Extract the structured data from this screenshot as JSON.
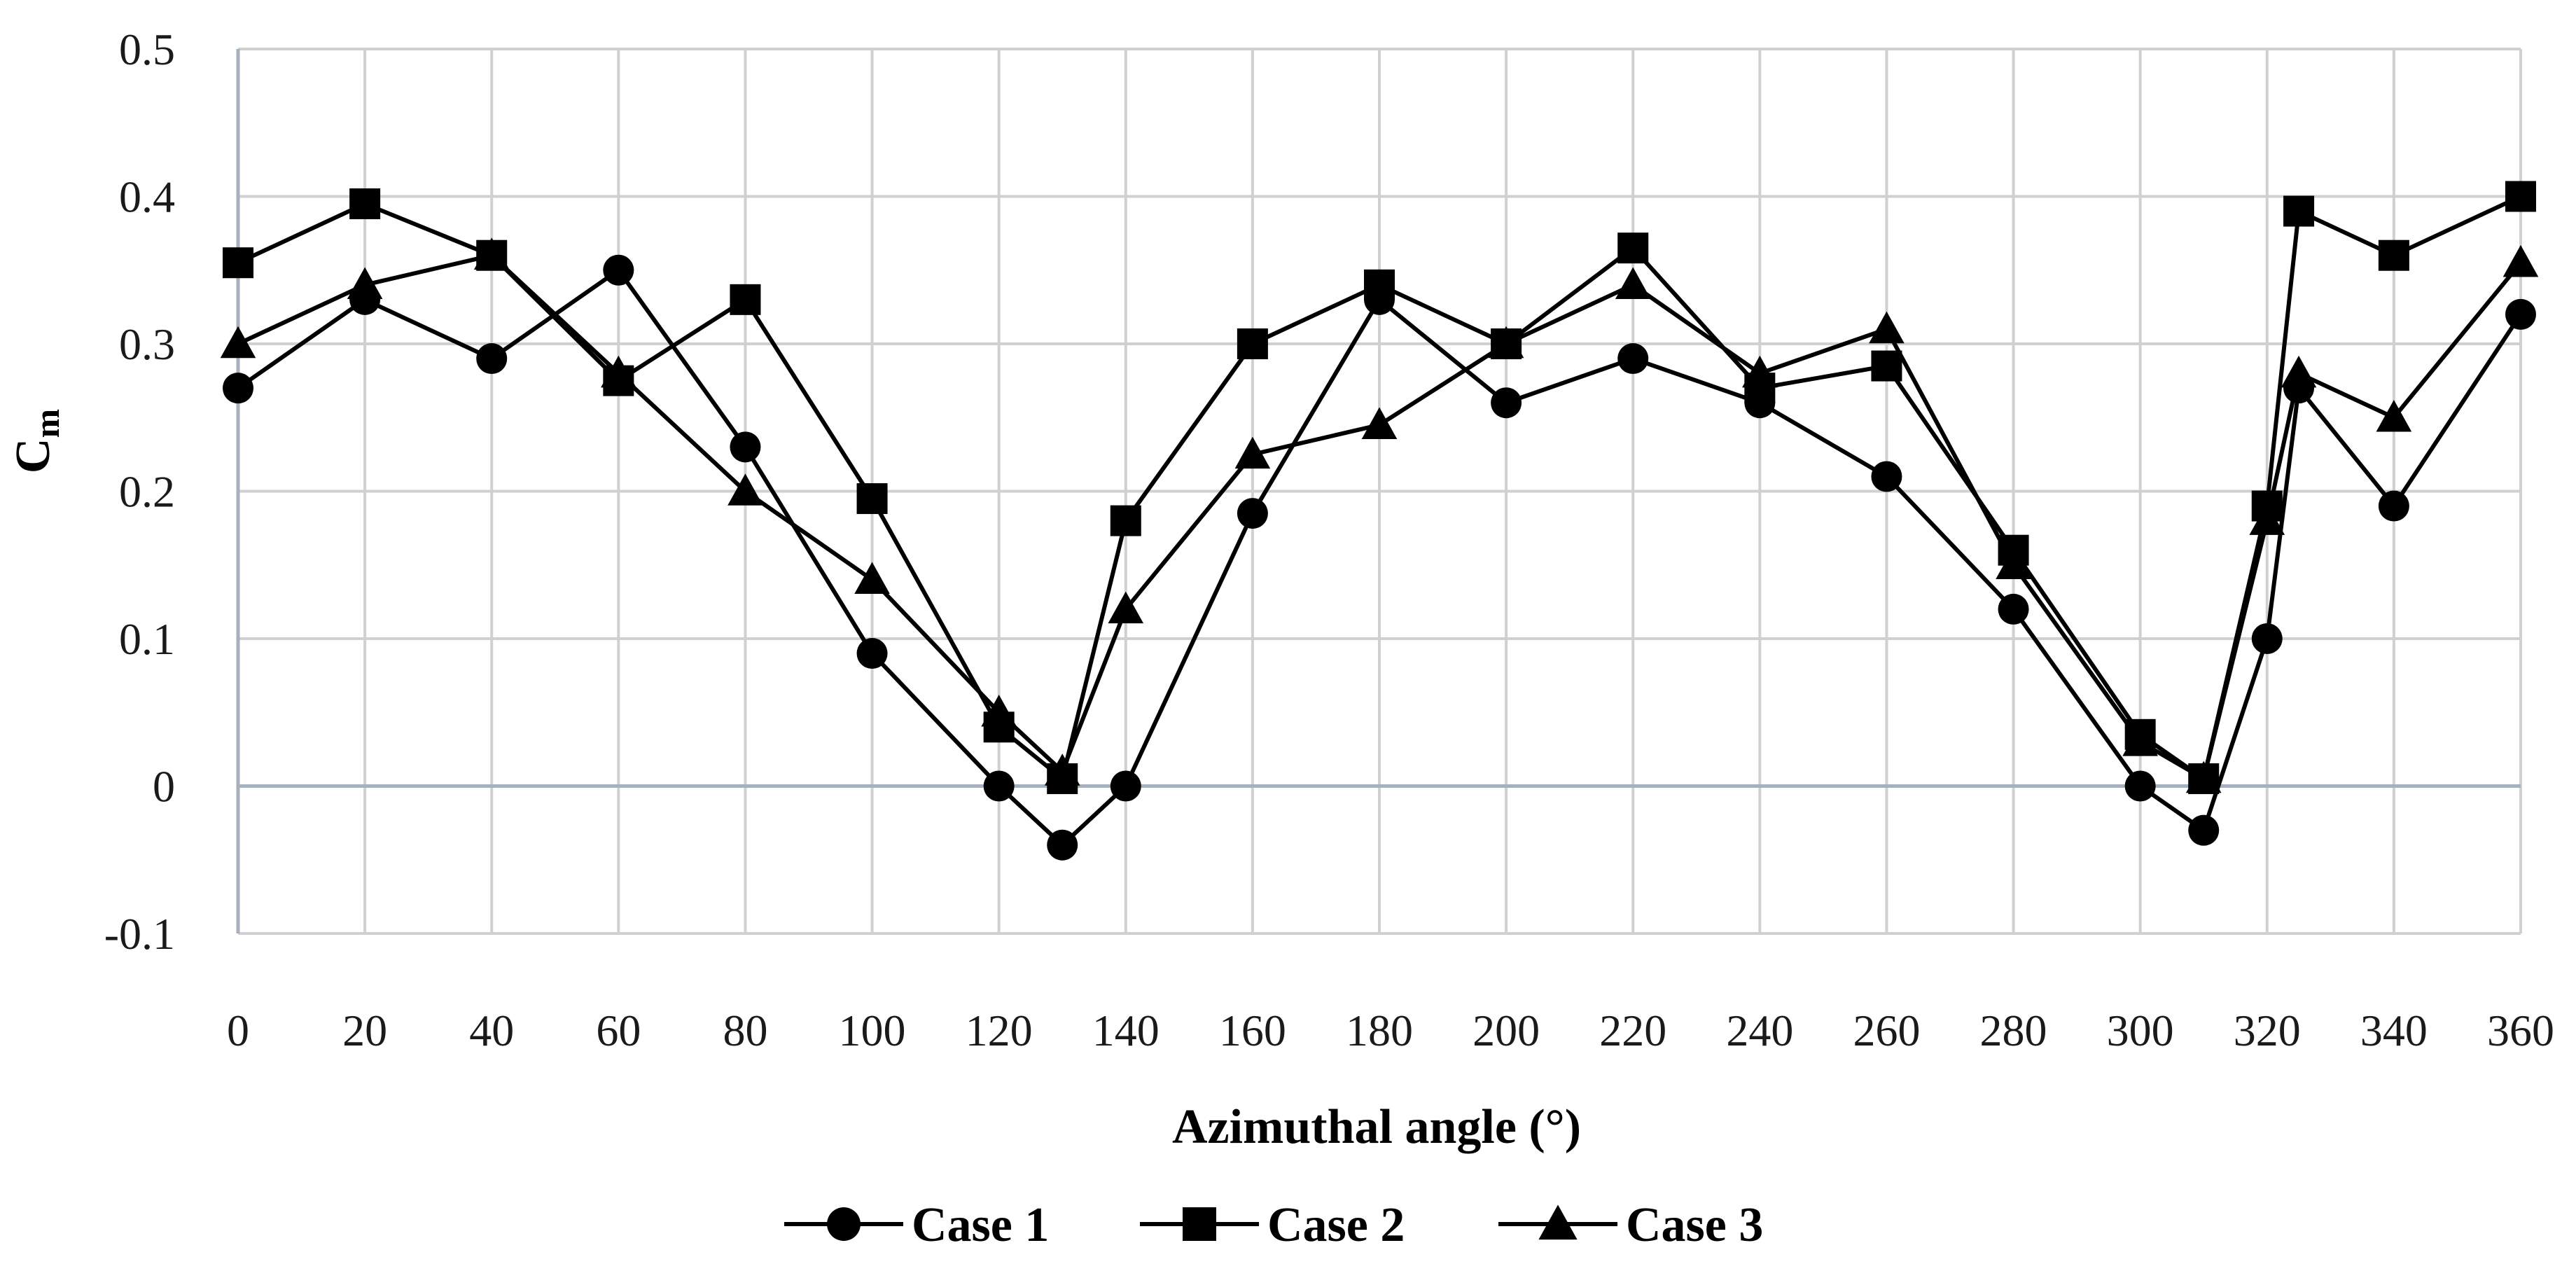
{
  "chart_data": {
    "type": "line",
    "title": "",
    "xlabel": "Azimuthal angle (°)",
    "ylabel_main": "C",
    "ylabel_sub": "m",
    "xlim": [
      0,
      360
    ],
    "ylim": [
      -0.1,
      0.5
    ],
    "x_ticks": [
      0,
      20,
      40,
      60,
      80,
      100,
      120,
      140,
      160,
      180,
      200,
      220,
      240,
      260,
      280,
      300,
      320,
      340,
      360
    ],
    "x_tick_labels": [
      "0",
      "20",
      "40",
      "60",
      "80",
      "100",
      "120",
      "140",
      "160",
      "180",
      "200",
      "220",
      "240",
      "260",
      "280",
      "300",
      "320",
      "340",
      "360"
    ],
    "y_ticks": [
      -0.1,
      0,
      0.1,
      0.2,
      0.3,
      0.4,
      0.5
    ],
    "y_tick_labels": [
      "-0.1",
      "0",
      "0.1",
      "0.2",
      "0.3",
      "0.4",
      "0.5"
    ],
    "grid": true,
    "legend_position": "bottom",
    "series": [
      {
        "name": "Case 1",
        "marker": "circle",
        "color": "#000000",
        "x": [
          0,
          20,
          40,
          60,
          80,
          100,
          120,
          130,
          140,
          160,
          180,
          200,
          220,
          240,
          260,
          280,
          300,
          310,
          320,
          325,
          340,
          360
        ],
        "values": [
          0.27,
          0.33,
          0.29,
          0.35,
          0.23,
          0.09,
          0.0,
          -0.04,
          0.0,
          0.185,
          0.33,
          0.26,
          0.29,
          0.26,
          0.21,
          0.12,
          0.0,
          -0.03,
          0.1,
          0.27,
          0.19,
          0.32
        ]
      },
      {
        "name": "Case 2",
        "marker": "square",
        "color": "#000000",
        "x": [
          0,
          20,
          40,
          60,
          80,
          100,
          120,
          130,
          140,
          160,
          180,
          200,
          220,
          240,
          260,
          280,
          300,
          310,
          320,
          325,
          340,
          360
        ],
        "values": [
          0.355,
          0.395,
          0.36,
          0.275,
          0.33,
          0.195,
          0.04,
          0.005,
          0.18,
          0.3,
          0.34,
          0.3,
          0.365,
          0.27,
          0.285,
          0.16,
          0.035,
          0.005,
          0.19,
          0.39,
          0.36,
          0.4
        ]
      },
      {
        "name": "Case 3",
        "marker": "triangle",
        "color": "#000000",
        "x": [
          0,
          20,
          40,
          60,
          80,
          100,
          120,
          130,
          140,
          160,
          180,
          200,
          220,
          240,
          260,
          280,
          300,
          310,
          320,
          325,
          340,
          360
        ],
        "values": [
          0.3,
          0.34,
          0.36,
          0.28,
          0.2,
          0.14,
          0.05,
          0.01,
          0.12,
          0.225,
          0.245,
          0.3,
          0.34,
          0.28,
          0.31,
          0.15,
          0.03,
          0.005,
          0.18,
          0.28,
          0.25,
          0.355
        ]
      }
    ]
  },
  "colors": {
    "grid": "#d0d0d0",
    "axis": "#a6b1bd",
    "zero_line": "#a6b1bd",
    "series_line": "#000000"
  }
}
